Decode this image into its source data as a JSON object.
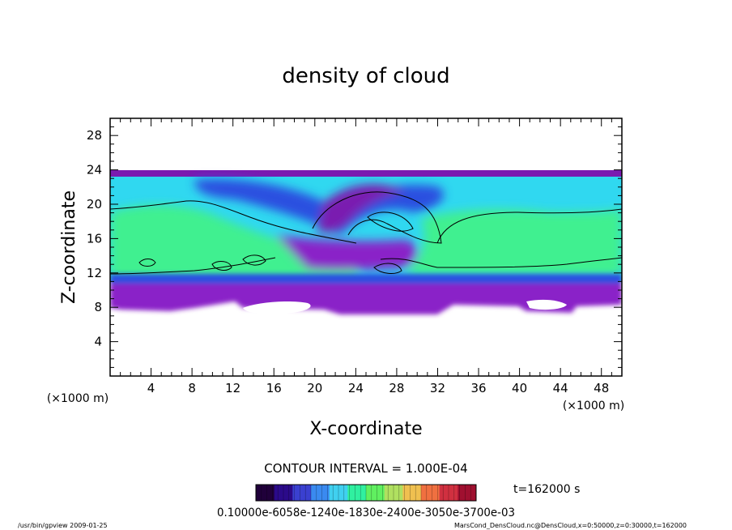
{
  "chart_data": {
    "type": "heatmap",
    "title": "density of cloud",
    "xlabel": "X-coordinate",
    "ylabel": "Z-coordinate",
    "x_unit": "(×1000 m)",
    "y_unit": "(×1000 m)",
    "xlim": [
      0,
      50
    ],
    "ylim": [
      0,
      30
    ],
    "x_ticks": [
      "4",
      "8",
      "12",
      "16",
      "20",
      "24",
      "28",
      "32",
      "36",
      "40",
      "44",
      "48"
    ],
    "y_ticks": [
      "4",
      "8",
      "12",
      "16",
      "20",
      "24",
      "28"
    ],
    "contour_interval": "CONTOUR INTERVAL = 1.000E-04",
    "time_label": "t=162000 s",
    "colorbar_labels": "0.10000e-6058e-1240e-1830e-2400e-3050e-3700e-03",
    "colorbar_colors": [
      "#20003a",
      "#2b0a8a",
      "#3a40d0",
      "#3a8af0",
      "#40d0f0",
      "#30f0a0",
      "#60f060",
      "#b0e060",
      "#f0c050",
      "#f07040",
      "#d03040",
      "#a01030"
    ],
    "footer_left": "/usr/bin/gpview   2009-01-25",
    "footer_right": "MarsCond_DensCloud.nc@DensCloud,x=0:50000,z=0:30000,t=162000",
    "field_extent_z": [
      7,
      24
    ],
    "colors": {
      "background": "#ffffff",
      "top_band": "#7a1ab0",
      "upper": "#30d8f0",
      "middle": "#40f090",
      "lower": "#2a50e0",
      "bottom": "#8a20c8",
      "contour": "#000000"
    }
  }
}
